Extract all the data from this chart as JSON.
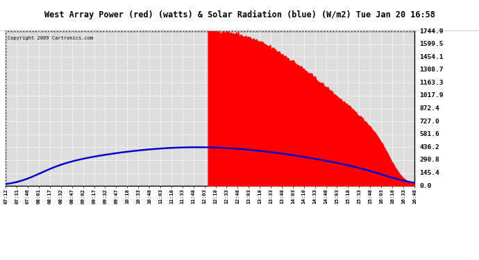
{
  "title": "West Array Power (red) (watts) & Solar Radiation (blue) (W/m2) Tue Jan 20 16:58",
  "copyright": "Copyright 2009 Cartronics.com",
  "y_ticks": [
    0.0,
    145.4,
    290.8,
    436.2,
    581.6,
    727.0,
    872.4,
    1017.9,
    1163.3,
    1308.7,
    1454.1,
    1599.5,
    1744.9
  ],
  "x_labels": [
    "07:12",
    "07:31",
    "07:46",
    "08:01",
    "08:17",
    "08:32",
    "08:47",
    "09:02",
    "09:17",
    "09:32",
    "09:47",
    "10:18",
    "10:33",
    "10:48",
    "11:03",
    "11:18",
    "11:33",
    "11:48",
    "12:03",
    "12:18",
    "12:33",
    "12:48",
    "13:03",
    "13:18",
    "13:33",
    "13:48",
    "14:03",
    "14:18",
    "14:33",
    "14:48",
    "15:03",
    "15:18",
    "15:33",
    "15:48",
    "16:03",
    "16:18",
    "16:33",
    "16:48"
  ],
  "ymax": 1744.9,
  "bg_color": "#ffffff",
  "plot_bg_color": "#ffffff",
  "grid_color": "#ffffff",
  "red_fill_color": "#ff0000",
  "blue_line_color": "#0000cc",
  "outer_bg": "#cccccc"
}
